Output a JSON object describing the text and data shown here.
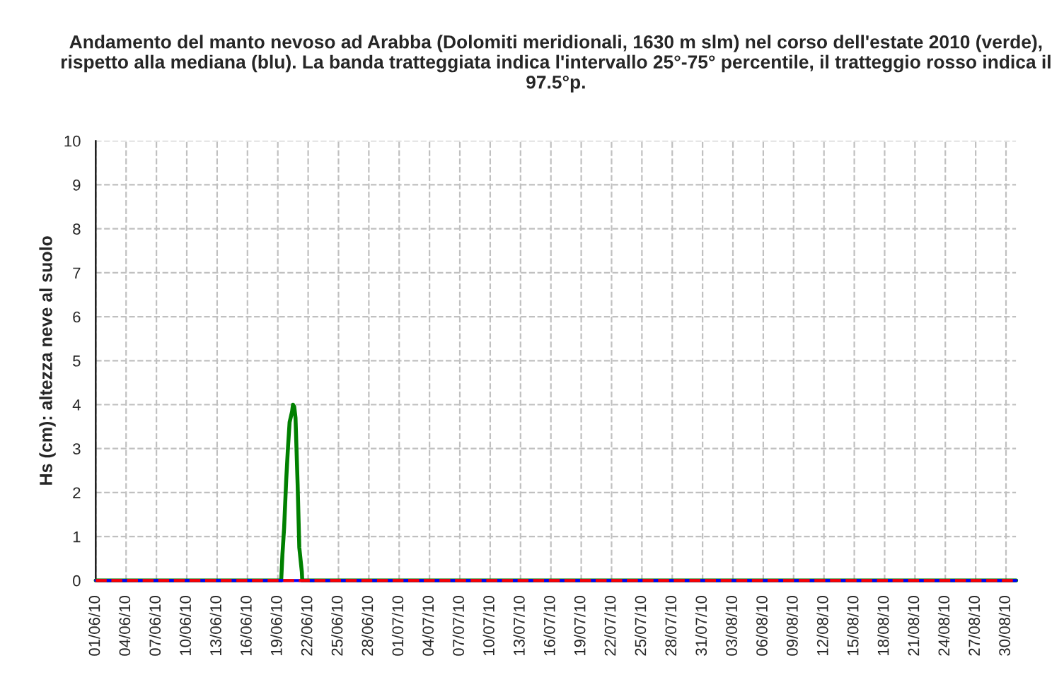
{
  "chart_data": {
    "type": "line",
    "title": "Andamento del manto nevoso ad Arabba (Dolomiti meridionali, 1630 m slm) nel corso dell'estate 2010 (verde), rispetto alla mediana (blu). La banda tratteggiata indica l'intervallo 25°-75° percentile, il tratteggio rosso indica il 97.5°p.",
    "ylabel": "Hs (cm): altezza neve al suolo",
    "series": [
      {
        "color": "#008000",
        "line_style": "solid",
        "x": [
          "2010-06-01",
          "2010-06-19T08:00",
          "2010-06-19T11:00",
          "2010-06-19T15:00",
          "2010-06-19T20:00",
          "2010-06-20T00:00",
          "2010-06-20T04:00",
          "2010-06-20T10:00",
          "2010-06-20T12:00",
          "2010-06-20T15:00",
          "2010-06-20T18:00",
          "2010-06-20T23:00",
          "2010-06-21T03:00",
          "2010-06-21T09:00",
          "2010-06-21T10:00",
          "2010-08-31"
        ],
        "values": [
          0,
          0,
          0.6,
          1.2,
          2.3,
          3.0,
          3.6,
          3.85,
          4.0,
          3.95,
          3.7,
          2.2,
          0.75,
          0.2,
          0,
          0
        ]
      },
      {
        "color": "#0000ff",
        "line_style": "solid",
        "x": [
          "2010-06-01",
          "2010-08-31"
        ],
        "values": [
          0,
          0
        ]
      },
      {
        "color": "#ff0000",
        "line_style": "dashed",
        "x": [
          "2010-06-01",
          "2010-08-31"
        ],
        "values": [
          0,
          0
        ]
      }
    ],
    "xlim": [
      "2010-06-01",
      "2010-08-31"
    ],
    "xticks": [
      {
        "value": "2010-06-01",
        "label": "01/06/10"
      },
      {
        "value": "2010-06-04",
        "label": "04/06/10"
      },
      {
        "value": "2010-06-07",
        "label": "07/06/10"
      },
      {
        "value": "2010-06-10",
        "label": "10/06/10"
      },
      {
        "value": "2010-06-13",
        "label": "13/06/10"
      },
      {
        "value": "2010-06-16",
        "label": "16/06/10"
      },
      {
        "value": "2010-06-19",
        "label": "19/06/10"
      },
      {
        "value": "2010-06-22",
        "label": "22/06/10"
      },
      {
        "value": "2010-06-25",
        "label": "25/06/10"
      },
      {
        "value": "2010-06-28",
        "label": "28/06/10"
      },
      {
        "value": "2010-07-01",
        "label": "01/07/10"
      },
      {
        "value": "2010-07-04",
        "label": "04/07/10"
      },
      {
        "value": "2010-07-07",
        "label": "07/07/10"
      },
      {
        "value": "2010-07-10",
        "label": "10/07/10"
      },
      {
        "value": "2010-07-13",
        "label": "13/07/10"
      },
      {
        "value": "2010-07-16",
        "label": "16/07/10"
      },
      {
        "value": "2010-07-19",
        "label": "19/07/10"
      },
      {
        "value": "2010-07-22",
        "label": "22/07/10"
      },
      {
        "value": "2010-07-25",
        "label": "25/07/10"
      },
      {
        "value": "2010-07-28",
        "label": "28/07/10"
      },
      {
        "value": "2010-07-31",
        "label": "31/07/10"
      },
      {
        "value": "2010-08-03",
        "label": "03/08/10"
      },
      {
        "value": "2010-08-06",
        "label": "06/08/10"
      },
      {
        "value": "2010-08-09",
        "label": "09/08/10"
      },
      {
        "value": "2010-08-12",
        "label": "12/08/10"
      },
      {
        "value": "2010-08-15",
        "label": "15/08/10"
      },
      {
        "value": "2010-08-18",
        "label": "18/08/10"
      },
      {
        "value": "2010-08-21",
        "label": "21/08/10"
      },
      {
        "value": "2010-08-24",
        "label": "24/08/10"
      },
      {
        "value": "2010-08-27",
        "label": "27/08/10"
      },
      {
        "value": "2010-08-30",
        "label": "30/08/10"
      }
    ],
    "ylim": [
      0,
      10
    ],
    "yticks": [
      0,
      1,
      2,
      3,
      4,
      5,
      6,
      7,
      8,
      9,
      10
    ],
    "grid": true,
    "marker": "none"
  }
}
